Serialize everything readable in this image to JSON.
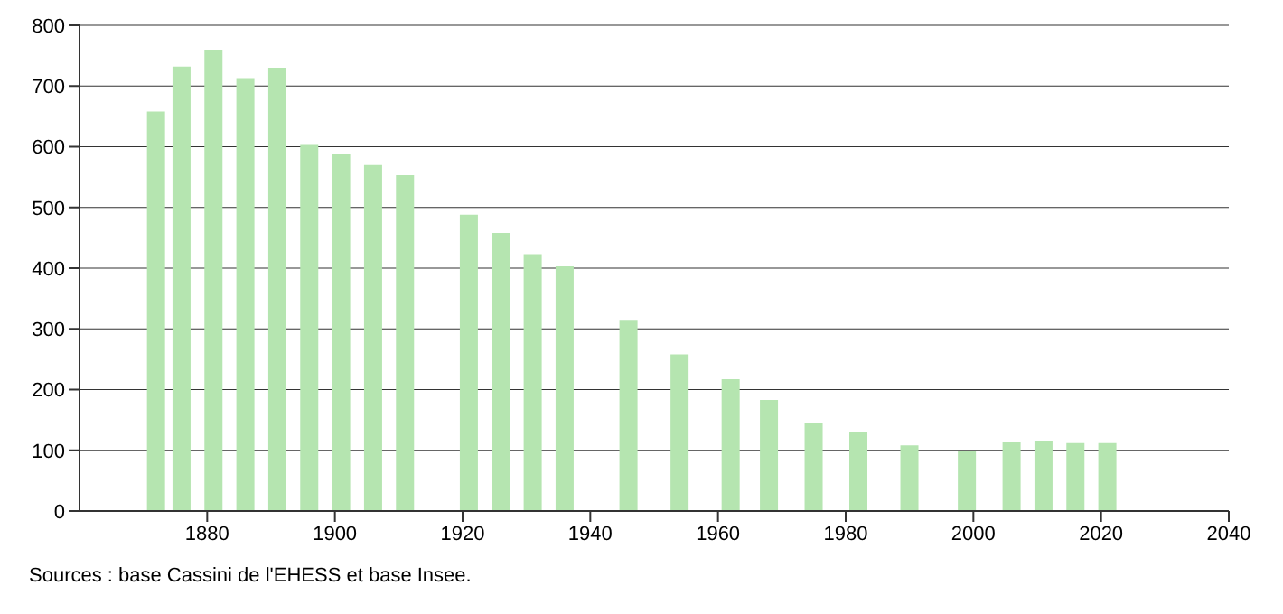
{
  "chart_data": {
    "type": "bar",
    "x": [
      1872,
      1876,
      1881,
      1886,
      1891,
      1896,
      1901,
      1906,
      1911,
      1921,
      1926,
      1931,
      1936,
      1946,
      1954,
      1962,
      1968,
      1975,
      1982,
      1990,
      1999,
      2006,
      2011,
      2016,
      2021
    ],
    "values": [
      658,
      732,
      760,
      713,
      730,
      603,
      588,
      570,
      553,
      488,
      458,
      423,
      403,
      315,
      258,
      217,
      183,
      145,
      131,
      108,
      99,
      114,
      116,
      112,
      112
    ],
    "color": "#b5e5b0",
    "xlim": [
      1860,
      2040
    ],
    "xticks": [
      1880,
      1900,
      1920,
      1940,
      1960,
      1980,
      2000,
      2020,
      2040
    ],
    "ylim": [
      0,
      800
    ],
    "yticks": [
      0,
      100,
      200,
      300,
      400,
      500,
      600,
      700,
      800
    ],
    "grid": "y",
    "annotations": [
      "Sources : base Cassini de l'EHESS et base Insee."
    ]
  }
}
